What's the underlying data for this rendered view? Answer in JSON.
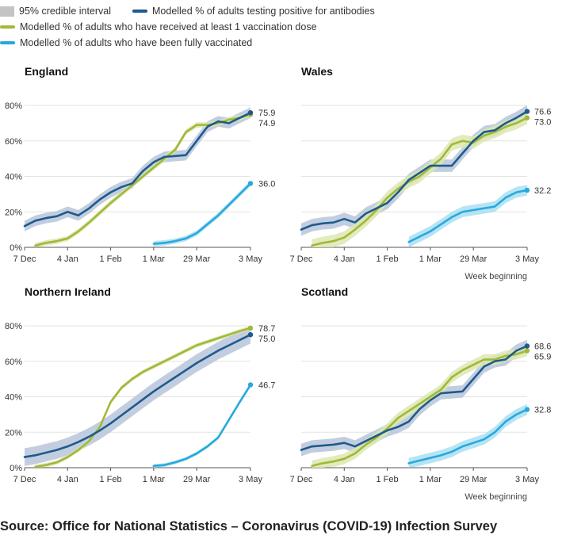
{
  "legend": {
    "interval": "95% credible interval",
    "antibodies": "Modelled % of adults testing positive for antibodies",
    "first_dose": "Modelled % of adults who have received at least 1 vaccination dose",
    "fully": "Modelled % of adults who have been fully vaccinated"
  },
  "source": "Source: Office for National Statistics – Coronavirus (COVID-19) Infection Survey",
  "colors": {
    "antibodies": "#1f5a8c",
    "first_dose": "#a1b839",
    "fully": "#27a9dd",
    "interval": "#c4c4c4"
  },
  "chart_data": [
    {
      "type": "line",
      "title": "England",
      "x_ticks": [
        "7 Dec",
        "4 Jan",
        "1 Feb",
        "1 Mar",
        "29 Mar",
        "3 May"
      ],
      "x_tick_weeks": [
        0,
        4,
        8,
        12,
        16,
        21
      ],
      "y_ticks": [
        "0%",
        "20%",
        "40%",
        "60%",
        "80%"
      ],
      "ylim": [
        0,
        80
      ],
      "xlabel": "",
      "series": [
        {
          "name": "antibodies",
          "x": [
            0,
            1,
            2,
            3,
            4,
            5,
            6,
            7,
            8,
            9,
            10,
            11,
            12,
            13,
            14,
            15,
            16,
            17,
            18,
            19,
            20,
            21
          ],
          "values": [
            12,
            15,
            16.5,
            17.5,
            20,
            18,
            22,
            27,
            31,
            34,
            36,
            43,
            48,
            51,
            51.5,
            52,
            60,
            68,
            71,
            70,
            73,
            75.9
          ],
          "band": 3,
          "end_label": "75.9"
        },
        {
          "name": "first_dose",
          "x": [
            1,
            2,
            3,
            4,
            5,
            6,
            7,
            8,
            9,
            10,
            11,
            12,
            13,
            14,
            15,
            16,
            17,
            18,
            19,
            20,
            21
          ],
          "values": [
            1,
            2.5,
            3.5,
            5,
            9,
            14,
            19.5,
            25,
            30,
            35,
            40,
            45,
            50,
            55,
            65,
            69,
            69,
            70,
            72,
            73,
            74.9
          ],
          "band": 1.5,
          "end_label": "74.9"
        },
        {
          "name": "fully",
          "x": [
            12,
            13,
            14,
            15,
            16,
            17,
            18,
            19,
            20,
            21
          ],
          "values": [
            2,
            2.5,
            3.5,
            5,
            8,
            13,
            18,
            24,
            30,
            36
          ],
          "band": 1.5,
          "end_label": "36.0"
        }
      ]
    },
    {
      "type": "line",
      "title": "Wales",
      "x_ticks": [
        "7 Dec",
        "4 Jan",
        "1 Feb",
        "1 Mar",
        "29 Mar",
        "3 May"
      ],
      "x_tick_weeks": [
        0,
        4,
        8,
        12,
        16,
        21
      ],
      "y_ticks": [
        "0%",
        "20%",
        "40%",
        "60%",
        "80%"
      ],
      "ylim": [
        0,
        80
      ],
      "xlabel": "Week beginning",
      "series": [
        {
          "name": "antibodies",
          "x": [
            0,
            1,
            2,
            3,
            4,
            5,
            6,
            7,
            8,
            9,
            10,
            11,
            12,
            13,
            14,
            15,
            16,
            17,
            18,
            19,
            20,
            21
          ],
          "values": [
            10,
            12.5,
            13.5,
            14,
            16,
            14,
            19,
            22,
            25,
            31,
            38,
            42,
            46,
            46,
            46,
            53,
            60,
            65,
            66,
            70,
            73,
            76.6
          ],
          "band": 3.5,
          "end_label": "76.6"
        },
        {
          "name": "first_dose",
          "x": [
            1,
            2,
            3,
            4,
            5,
            6,
            7,
            8,
            9,
            10,
            11,
            12,
            13,
            14,
            15,
            16,
            17,
            18,
            19,
            20,
            21
          ],
          "values": [
            1,
            2.5,
            3.5,
            5.5,
            10,
            15,
            21,
            28,
            33,
            37,
            40,
            45,
            50,
            58,
            60,
            59,
            63,
            65,
            68,
            70,
            73
          ],
          "band": 3.5,
          "end_label": "73.0"
        },
        {
          "name": "fully",
          "x": [
            10,
            11,
            12,
            13,
            14,
            15,
            16,
            17,
            18,
            19,
            20,
            21
          ],
          "values": [
            3,
            6,
            9,
            13,
            17,
            20,
            21,
            22,
            23,
            28,
            31,
            32.2
          ],
          "band": 3,
          "end_label": "32.2"
        }
      ]
    },
    {
      "type": "line",
      "title": "Northern Ireland",
      "x_ticks": [
        "7 Dec",
        "4 Jan",
        "1 Feb",
        "1 Mar",
        "29 Mar",
        "3 May"
      ],
      "x_tick_weeks": [
        0,
        4,
        8,
        12,
        16,
        21
      ],
      "y_ticks": [
        "0%",
        "20%",
        "40%",
        "60%",
        "80%"
      ],
      "ylim": [
        0,
        80
      ],
      "xlabel": "",
      "series": [
        {
          "name": "antibodies",
          "x": [
            0,
            1,
            2,
            3,
            4,
            5,
            6,
            7,
            8,
            9,
            10,
            11,
            12,
            13,
            14,
            15,
            16,
            17,
            18,
            19,
            20,
            21
          ],
          "values": [
            6,
            7,
            8.5,
            10,
            12,
            14.5,
            17.5,
            21,
            25,
            29.5,
            34,
            38.5,
            43,
            47,
            51,
            55,
            59,
            62.5,
            66,
            69,
            72,
            75
          ],
          "band": 5,
          "end_label": "75.0"
        },
        {
          "name": "first_dose",
          "x": [
            1,
            2,
            3,
            4,
            5,
            6,
            7,
            8,
            9,
            10,
            11,
            12,
            13,
            14,
            15,
            16,
            17,
            18,
            19,
            20,
            21
          ],
          "values": [
            0.5,
            1.5,
            3,
            6,
            10,
            15,
            23,
            37,
            45,
            50,
            54,
            57,
            60,
            63,
            66,
            69,
            71,
            73,
            75,
            77,
            78.7
          ],
          "band": 1.2,
          "end_label": "78.7"
        },
        {
          "name": "fully",
          "x": [
            12,
            13,
            14,
            15,
            16,
            17,
            18,
            19,
            20,
            21
          ],
          "values": [
            1,
            1.5,
            3,
            5,
            8,
            12,
            17,
            27,
            37,
            46.7
          ],
          "band": 1,
          "end_label": "46.7"
        }
      ]
    },
    {
      "type": "line",
      "title": "Scotland",
      "x_ticks": [
        "7 Dec",
        "4 Jan",
        "1 Feb",
        "1 Mar",
        "29 Mar",
        "3 May"
      ],
      "x_tick_weeks": [
        0,
        4,
        8,
        12,
        16,
        21
      ],
      "y_ticks": [
        "0%",
        "20%",
        "40%",
        "60%",
        "80%"
      ],
      "ylim": [
        0,
        80
      ],
      "xlabel": "Week beginning",
      "series": [
        {
          "name": "antibodies",
          "x": [
            0,
            1,
            2,
            3,
            4,
            5,
            6,
            7,
            8,
            9,
            10,
            11,
            12,
            13,
            14,
            15,
            16,
            17,
            18,
            19,
            20,
            21
          ],
          "values": [
            10,
            12,
            12.5,
            13,
            14,
            12,
            15,
            18,
            21,
            23,
            26,
            33,
            38,
            42,
            42.5,
            43,
            50,
            57,
            60,
            61,
            66,
            68.6
          ],
          "band": 3.5,
          "end_label": "68.6"
        },
        {
          "name": "first_dose",
          "x": [
            1,
            2,
            3,
            4,
            5,
            6,
            7,
            8,
            9,
            10,
            11,
            12,
            13,
            14,
            15,
            16,
            17,
            18,
            19,
            20,
            21
          ],
          "values": [
            1,
            2.5,
            3.5,
            5,
            8,
            13,
            17,
            22,
            28,
            32,
            36,
            40,
            44,
            51,
            55,
            58,
            61,
            61,
            63,
            64,
            65.9
          ],
          "band": 3,
          "end_label": "65.9"
        },
        {
          "name": "fully",
          "x": [
            10,
            11,
            12,
            13,
            14,
            15,
            16,
            17,
            18,
            19,
            20,
            21
          ],
          "values": [
            2.5,
            4,
            5.5,
            7,
            9,
            12,
            14,
            16,
            20,
            26,
            30,
            32.8
          ],
          "band": 3,
          "end_label": "32.8"
        }
      ]
    }
  ]
}
